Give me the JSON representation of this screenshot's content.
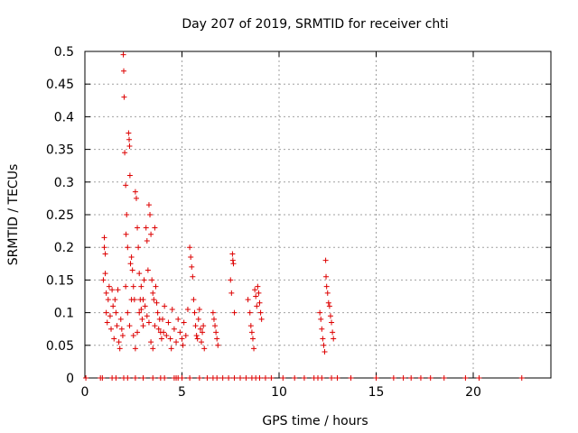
{
  "chart_data": {
    "type": "scatter",
    "title": "Day 207 of 2019, SRMTID for receiver chti",
    "xlabel": "GPS time / hours",
    "ylabel": "SRMTID / TECUs",
    "xlim": [
      0,
      24
    ],
    "ylim": [
      0,
      0.5
    ],
    "x_ticks": [
      0,
      5,
      10,
      15,
      20
    ],
    "y_ticks": [
      0,
      0.05,
      0.1,
      0.15,
      0.2,
      0.25,
      0.3,
      0.35,
      0.4,
      0.45,
      0.5
    ],
    "x_tick_labels": [
      "0",
      "5",
      "10",
      "15",
      "20"
    ],
    "y_tick_labels": [
      "0",
      "0.05",
      "0.1",
      "0.15",
      "0.2",
      "0.25",
      "0.3",
      "0.35",
      "0.4",
      "0.45",
      "0.5"
    ],
    "grid": true,
    "marker": "plus",
    "series": [
      {
        "name": "",
        "color": "#dd0000",
        "points": [
          [
            0.05,
            0
          ],
          [
            0.8,
            0
          ],
          [
            0.9,
            0
          ],
          [
            1.4,
            0
          ],
          [
            1.6,
            0
          ],
          [
            2.0,
            0
          ],
          [
            2.2,
            0
          ],
          [
            2.6,
            0
          ],
          [
            3.0,
            0
          ],
          [
            3.5,
            0
          ],
          [
            3.9,
            0
          ],
          [
            4.1,
            0
          ],
          [
            4.6,
            0
          ],
          [
            4.7,
            0
          ],
          [
            4.8,
            0
          ],
          [
            5.0,
            0
          ],
          [
            5.4,
            0
          ],
          [
            5.9,
            0
          ],
          [
            6.3,
            0
          ],
          [
            6.6,
            0
          ],
          [
            6.8,
            0
          ],
          [
            7.1,
            0
          ],
          [
            7.4,
            0
          ],
          [
            7.7,
            0
          ],
          [
            8.0,
            0
          ],
          [
            8.3,
            0
          ],
          [
            8.6,
            0
          ],
          [
            8.8,
            0
          ],
          [
            9.0,
            0
          ],
          [
            9.3,
            0
          ],
          [
            9.6,
            0
          ],
          [
            10.2,
            0
          ],
          [
            10.8,
            0
          ],
          [
            11.3,
            0
          ],
          [
            11.8,
            0
          ],
          [
            12.0,
            0
          ],
          [
            12.2,
            0
          ],
          [
            12.7,
            0
          ],
          [
            13.0,
            0
          ],
          [
            13.7,
            0
          ],
          [
            15.0,
            0
          ],
          [
            15.9,
            0
          ],
          [
            16.4,
            0
          ],
          [
            16.8,
            0
          ],
          [
            17.3,
            0
          ],
          [
            17.8,
            0
          ],
          [
            18.5,
            0
          ],
          [
            19.6,
            0
          ],
          [
            20.3,
            0
          ],
          [
            22.5,
            0
          ],
          [
            0.95,
            0.15
          ],
          [
            1.0,
            0.2
          ],
          [
            1.0,
            0.215
          ],
          [
            1.05,
            0.19
          ],
          [
            1.05,
            0.16
          ],
          [
            1.1,
            0.13
          ],
          [
            1.1,
            0.1
          ],
          [
            1.15,
            0.085
          ],
          [
            1.2,
            0.12
          ],
          [
            1.25,
            0.14
          ],
          [
            1.3,
            0.095
          ],
          [
            1.35,
            0.075
          ],
          [
            1.4,
            0.135
          ],
          [
            1.45,
            0.11
          ],
          [
            1.5,
            0.06
          ],
          [
            1.55,
            0.12
          ],
          [
            1.6,
            0.1
          ],
          [
            1.65,
            0.08
          ],
          [
            1.7,
            0.135
          ],
          [
            1.75,
            0.055
          ],
          [
            1.8,
            0.045
          ],
          [
            1.85,
            0.09
          ],
          [
            1.9,
            0.075
          ],
          [
            1.95,
            0.065
          ],
          [
            1.98,
            0.495
          ],
          [
            2.0,
            0.47
          ],
          [
            2.02,
            0.43
          ],
          [
            2.05,
            0.345
          ],
          [
            2.1,
            0.295
          ],
          [
            2.12,
            0.22
          ],
          [
            2.15,
            0.25
          ],
          [
            2.2,
            0.2
          ],
          [
            2.25,
            0.375
          ],
          [
            2.28,
            0.365
          ],
          [
            2.3,
            0.355
          ],
          [
            2.32,
            0.31
          ],
          [
            2.35,
            0.175
          ],
          [
            2.4,
            0.185
          ],
          [
            2.45,
            0.165
          ],
          [
            2.5,
            0.14
          ],
          [
            2.55,
            0.12
          ],
          [
            2.6,
            0.285
          ],
          [
            2.65,
            0.275
          ],
          [
            2.7,
            0.23
          ],
          [
            2.75,
            0.2
          ],
          [
            2.8,
            0.16
          ],
          [
            2.85,
            0.12
          ],
          [
            2.9,
            0.105
          ],
          [
            2.95,
            0.09
          ],
          [
            3.0,
            0.08
          ],
          [
            3.05,
            0.15
          ],
          [
            3.1,
            0.11
          ],
          [
            3.15,
            0.23
          ],
          [
            3.2,
            0.21
          ],
          [
            3.25,
            0.165
          ],
          [
            3.3,
            0.265
          ],
          [
            3.35,
            0.25
          ],
          [
            3.4,
            0.22
          ],
          [
            3.45,
            0.15
          ],
          [
            3.5,
            0.13
          ],
          [
            3.55,
            0.12
          ],
          [
            3.6,
            0.23
          ],
          [
            3.65,
            0.14
          ],
          [
            3.7,
            0.115
          ],
          [
            3.75,
            0.1
          ],
          [
            3.8,
            0.075
          ],
          [
            3.85,
            0.09
          ],
          [
            3.9,
            0.07
          ],
          [
            3.95,
            0.06
          ],
          [
            2.1,
            0.14
          ],
          [
            2.2,
            0.1
          ],
          [
            2.3,
            0.08
          ],
          [
            2.4,
            0.12
          ],
          [
            2.5,
            0.065
          ],
          [
            2.6,
            0.045
          ],
          [
            2.7,
            0.07
          ],
          [
            2.8,
            0.1
          ],
          [
            2.9,
            0.14
          ],
          [
            3.0,
            0.12
          ],
          [
            3.2,
            0.095
          ],
          [
            3.3,
            0.085
          ],
          [
            3.4,
            0.055
          ],
          [
            3.5,
            0.045
          ],
          [
            3.6,
            0.08
          ],
          [
            4.0,
            0.09
          ],
          [
            4.05,
            0.07
          ],
          [
            4.1,
            0.11
          ],
          [
            4.2,
            0.065
          ],
          [
            4.3,
            0.085
          ],
          [
            4.4,
            0.06
          ],
          [
            4.45,
            0.045
          ],
          [
            4.5,
            0.105
          ],
          [
            4.6,
            0.075
          ],
          [
            4.7,
            0.055
          ],
          [
            4.8,
            0.09
          ],
          [
            4.9,
            0.07
          ],
          [
            5.0,
            0.06
          ],
          [
            5.05,
            0.05
          ],
          [
            5.1,
            0.085
          ],
          [
            5.2,
            0.065
          ],
          [
            5.3,
            0.105
          ],
          [
            5.4,
            0.2
          ],
          [
            5.45,
            0.185
          ],
          [
            5.5,
            0.17
          ],
          [
            5.55,
            0.155
          ],
          [
            5.6,
            0.12
          ],
          [
            5.65,
            0.1
          ],
          [
            5.7,
            0.08
          ],
          [
            5.75,
            0.065
          ],
          [
            5.8,
            0.06
          ],
          [
            5.85,
            0.09
          ],
          [
            5.9,
            0.105
          ],
          [
            5.95,
            0.075
          ],
          [
            6.0,
            0.055
          ],
          [
            6.05,
            0.07
          ],
          [
            6.1,
            0.08
          ],
          [
            6.15,
            0.045
          ],
          [
            6.6,
            0.1
          ],
          [
            6.65,
            0.09
          ],
          [
            6.7,
            0.08
          ],
          [
            6.75,
            0.07
          ],
          [
            6.8,
            0.06
          ],
          [
            6.85,
            0.05
          ],
          [
            7.5,
            0.15
          ],
          [
            7.55,
            0.13
          ],
          [
            7.6,
            0.19
          ],
          [
            7.62,
            0.18
          ],
          [
            7.65,
            0.175
          ],
          [
            7.7,
            0.1
          ],
          [
            8.4,
            0.12
          ],
          [
            8.5,
            0.1
          ],
          [
            8.55,
            0.08
          ],
          [
            8.6,
            0.07
          ],
          [
            8.65,
            0.06
          ],
          [
            8.7,
            0.045
          ],
          [
            8.75,
            0.135
          ],
          [
            8.8,
            0.125
          ],
          [
            8.85,
            0.11
          ],
          [
            8.9,
            0.14
          ],
          [
            8.95,
            0.13
          ],
          [
            9.0,
            0.115
          ],
          [
            9.05,
            0.1
          ],
          [
            9.1,
            0.09
          ],
          [
            12.1,
            0.1
          ],
          [
            12.15,
            0.09
          ],
          [
            12.2,
            0.075
          ],
          [
            12.25,
            0.06
          ],
          [
            12.3,
            0.05
          ],
          [
            12.35,
            0.04
          ],
          [
            12.4,
            0.18
          ],
          [
            12.42,
            0.155
          ],
          [
            12.45,
            0.14
          ],
          [
            12.5,
            0.13
          ],
          [
            12.55,
            0.115
          ],
          [
            12.6,
            0.11
          ],
          [
            12.65,
            0.095
          ],
          [
            12.7,
            0.085
          ],
          [
            12.75,
            0.07
          ],
          [
            12.8,
            0.06
          ]
        ]
      }
    ]
  }
}
